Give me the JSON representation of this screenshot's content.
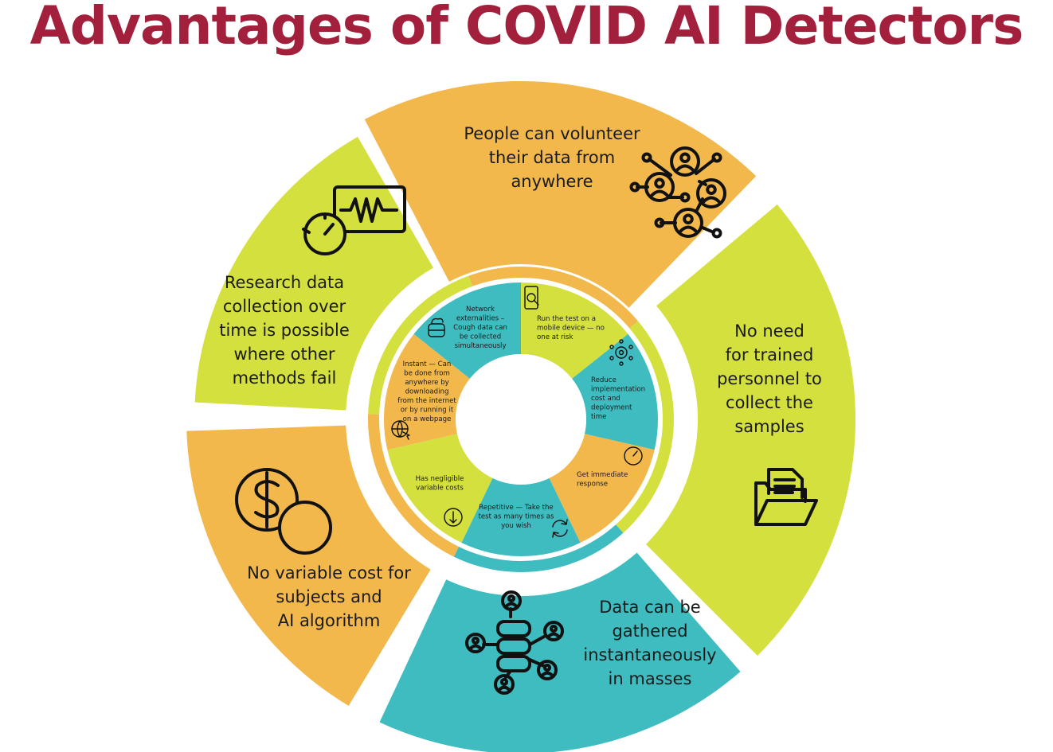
{
  "title": "Advantages of COVID AI Detectors",
  "colors": {
    "title": "#a3203c",
    "orange": "#f2b84b",
    "lime": "#d4e03e",
    "teal": "#3fbcc0",
    "background": "#ffffff"
  },
  "outer_segments": [
    {
      "id": "volunteer",
      "color": "orange",
      "icon": "user-network-icon",
      "lines": [
        "People can volunteer",
        "their data from",
        "anywhere"
      ]
    },
    {
      "id": "no-personnel",
      "color": "lime",
      "icon": "folder-documents-icon",
      "lines": [
        "No need",
        "for trained",
        "personnel to",
        "collect the",
        "samples"
      ]
    },
    {
      "id": "instant-masses",
      "color": "teal",
      "icon": "database-users-icon",
      "lines": [
        "Data can be",
        "gathered",
        "instantaneously",
        "in masses"
      ]
    },
    {
      "id": "no-variable-cost",
      "color": "orange",
      "icon": "dollar-coins-icon",
      "lines": [
        "No variable cost for",
        "subjects and",
        "AI algorithm"
      ]
    },
    {
      "id": "research-over-time",
      "color": "lime",
      "icon": "monitor-timer-icon",
      "lines": [
        "Research data",
        "collection over",
        "time is possible",
        "where other",
        "methods fail"
      ]
    }
  ],
  "inner_segments": [
    {
      "id": "mobile",
      "color": "lime",
      "icon": "phone-search-icon",
      "lines": [
        "Run the test on a",
        "mobile device — no",
        "one at risk"
      ]
    },
    {
      "id": "reduce-cost",
      "color": "teal",
      "icon": "gear-network-icon",
      "lines": [
        "Reduce",
        "implementation",
        "cost and",
        "deployment",
        "time"
      ]
    },
    {
      "id": "immediate",
      "color": "orange",
      "icon": "gauge-icon",
      "lines": [
        "Get immediate",
        "response"
      ]
    },
    {
      "id": "repetitive",
      "color": "teal",
      "icon": "refresh-icon",
      "lines": [
        "Repetitive — Take the",
        "test as many times as",
        "you wish"
      ]
    },
    {
      "id": "negligible-cost",
      "color": "lime",
      "icon": "price-down-icon",
      "lines": [
        "Has negligible",
        "variable costs"
      ]
    },
    {
      "id": "instant-web",
      "color": "orange",
      "icon": "globe-cursor-icon",
      "lines": [
        "Instant — Can",
        "be done from",
        "anywhere by",
        "downloading",
        "from the internet",
        "or by running it",
        "on a webpage"
      ]
    },
    {
      "id": "network",
      "color": "teal",
      "icon": "cloud-database-icon",
      "lines": [
        "Network",
        "externalities –",
        "Cough data can",
        "be collected",
        "simultaneously"
      ]
    }
  ]
}
